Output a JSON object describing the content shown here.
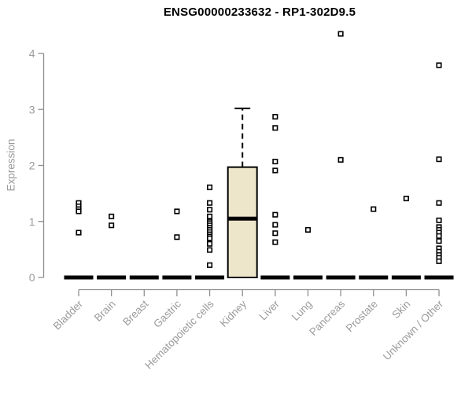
{
  "chart_data": {
    "type": "boxplot",
    "title": "ENSG00000233632 - RP1-302D9.5",
    "ylabel": "Expression",
    "xlabel": "",
    "ylim": [
      0,
      4
    ],
    "yticks": [
      0,
      1,
      2,
      3,
      4
    ],
    "grid": false,
    "legend": "none",
    "categories": [
      {
        "label": "Bladder",
        "box": {
          "median": 0
        },
        "points": [
          1.33,
          1.27,
          1.22,
          1.18,
          0.8
        ]
      },
      {
        "label": "Brain",
        "box": {
          "median": 0
        },
        "points": [
          1.09,
          0.93
        ]
      },
      {
        "label": "Breast",
        "box": {
          "median": 0
        },
        "points": []
      },
      {
        "label": "Gastric",
        "box": {
          "median": 0
        },
        "points": [
          1.18,
          0.72
        ]
      },
      {
        "label": "Hematopoietic cells",
        "box": {
          "median": 0
        },
        "points": [
          1.61,
          1.33,
          1.21,
          1.09,
          1.0,
          0.97,
          0.93,
          0.89,
          0.85,
          0.81,
          0.77,
          0.73,
          0.7,
          0.6,
          0.49,
          0.22
        ]
      },
      {
        "label": "Kidney",
        "box": {
          "q1": 0,
          "median": 1.05,
          "q3": 1.97,
          "whisker_low": 0,
          "whisker_high": 3.02
        },
        "points": []
      },
      {
        "label": "Liver",
        "box": {
          "median": 0
        },
        "points": [
          2.87,
          2.67,
          2.07,
          1.91,
          1.12,
          0.94,
          0.79,
          0.63
        ]
      },
      {
        "label": "Lung",
        "box": {
          "median": 0
        },
        "points": [
          0.85
        ]
      },
      {
        "label": "Pancreas",
        "box": {
          "median": 0
        },
        "points": [
          4.35,
          2.1
        ]
      },
      {
        "label": "Prostate",
        "box": {
          "median": 0
        },
        "points": [
          1.22
        ]
      },
      {
        "label": "Skin",
        "box": {
          "median": 0
        },
        "points": [
          1.41
        ]
      },
      {
        "label": "Unknown / Other",
        "box": {
          "median": 0
        },
        "points": [
          3.79,
          2.11,
          1.33,
          1.02,
          0.9,
          0.85,
          0.8,
          0.74,
          0.65,
          0.52,
          0.46,
          0.4,
          0.35,
          0.29
        ]
      }
    ],
    "colors": {
      "title": "#000000",
      "axis_line": "#8f8f8f",
      "axis_text": "#9b9b9b",
      "box_fill": "#EDE6CB",
      "box_stroke": "#000000",
      "marker_stroke": "#000000",
      "marker_fill": "#ffffff",
      "background": "#ffffff"
    }
  }
}
